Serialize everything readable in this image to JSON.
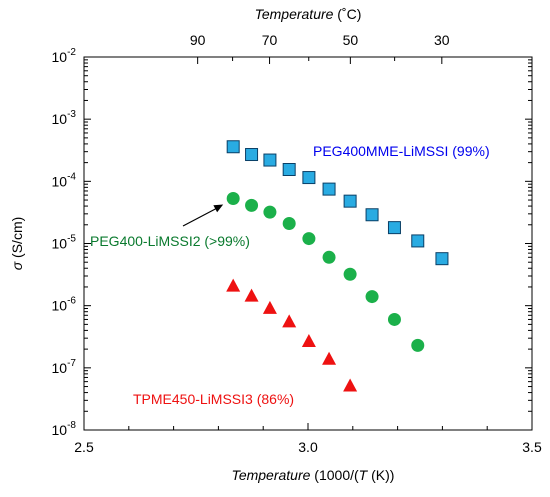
{
  "chart_data": {
    "type": "scatter",
    "x_axis": {
      "label_italic": "Temperature",
      "label_prefix": "(1000/(",
      "label_var": "T",
      "label_suffix": " (K))",
      "range": [
        2.5,
        3.5
      ],
      "ticks": [
        2.5,
        3.0,
        3.5
      ],
      "tick_labels": [
        "2.5",
        "3.0",
        "3.5"
      ],
      "minor_step": 0.1
    },
    "top_axis": {
      "label_italic": "Temperature",
      "label_unit": " (˚C)",
      "ticks_celsius": [
        90,
        70,
        50,
        30
      ],
      "tick_labels": [
        "90",
        "70",
        "50",
        "30"
      ],
      "minor_ticks_celsius": [
        80,
        60,
        40
      ]
    },
    "y_axis": {
      "label_symbol": "σ",
      "label_unit": " (S/cm)",
      "scale": "log",
      "range": [
        1e-08,
        0.01
      ],
      "ticks": [
        1e-08,
        1e-07,
        1e-06,
        1e-05,
        0.0001,
        0.001,
        0.01
      ],
      "tick_labels": [
        {
          "base": "10",
          "exp": "-8"
        },
        {
          "base": "10",
          "exp": "-7"
        },
        {
          "base": "10",
          "exp": "-6"
        },
        {
          "base": "10",
          "exp": "-5"
        },
        {
          "base": "10",
          "exp": "-4"
        },
        {
          "base": "10",
          "exp": "-3"
        },
        {
          "base": "10",
          "exp": "-2"
        }
      ]
    },
    "grid": false,
    "series": [
      {
        "name": "PEG400MME-LiMSSI (99%)",
        "marker": "square",
        "color": "#29ABE2",
        "label_color": "#0000EE",
        "x": [
          2.833,
          2.874,
          2.915,
          2.958,
          3.002,
          3.047,
          3.094,
          3.143,
          3.193,
          3.245,
          3.299
        ],
        "y": [
          0.00036,
          0.00027,
          0.00022,
          0.000155,
          0.000115,
          7.5e-05,
          4.8e-05,
          2.9e-05,
          1.8e-05,
          1.1e-05,
          5.7e-06
        ]
      },
      {
        "name": "PEG400-LiMSSI2 (>99%)",
        "marker": "circle",
        "color": "#1BB04A",
        "label_color": "#0A7A2E",
        "x": [
          2.833,
          2.874,
          2.915,
          2.958,
          3.002,
          3.047,
          3.094,
          3.143,
          3.193,
          3.245
        ],
        "y": [
          5.3e-05,
          4.1e-05,
          3.2e-05,
          2.1e-05,
          1.2e-05,
          6e-06,
          3.2e-06,
          1.4e-06,
          6e-07,
          2.3e-07
        ]
      },
      {
        "name": "TPME450-LiMSSI3 (86%)",
        "marker": "triangle",
        "color": "#EE1111",
        "label_color": "#EE1111",
        "x": [
          2.833,
          2.874,
          2.915,
          2.958,
          3.002,
          3.047,
          3.094
        ],
        "y": [
          2.1e-06,
          1.45e-06,
          9.2e-07,
          5.6e-07,
          2.7e-07,
          1.4e-07,
          5.2e-08
        ]
      }
    ]
  }
}
